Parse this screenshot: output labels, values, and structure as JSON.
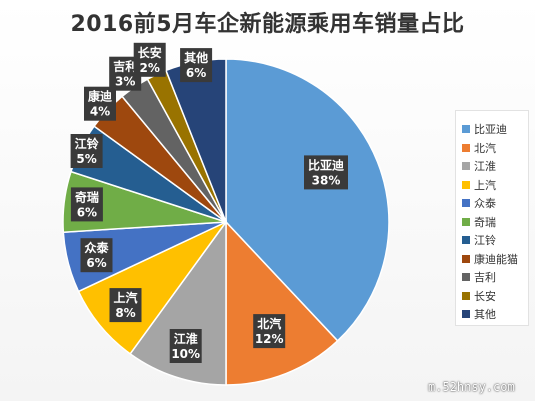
{
  "chart_data": {
    "type": "pie",
    "title": "2016前5月车企新能源乘用车销量占比",
    "categories": [
      "比亚迪",
      "北汽",
      "江淮",
      "上汽",
      "众泰",
      "奇瑞",
      "江铃",
      "康迪能猫",
      "吉利",
      "长安",
      "其他"
    ],
    "slice_labels": [
      "比亚迪",
      "北汽",
      "江淮",
      "上汽",
      "众泰",
      "奇瑞",
      "江铃",
      "康迪",
      "吉利",
      "长安",
      "其他"
    ],
    "values": [
      38,
      12,
      10,
      8,
      6,
      6,
      5,
      4,
      3,
      2,
      6
    ],
    "value_labels": [
      "38%",
      "12%",
      "10%",
      "8%",
      "6%",
      "6%",
      "5%",
      "4%",
      "3%",
      "2%",
      "6%"
    ],
    "colors": [
      "#5b9bd5",
      "#ed7d31",
      "#a5a5a5",
      "#ffc000",
      "#4472c4",
      "#70ad47",
      "#255e91",
      "#9e480e",
      "#636363",
      "#997300",
      "#264478"
    ],
    "legend_position": "right"
  },
  "watermark": "m.52hnsy.com"
}
